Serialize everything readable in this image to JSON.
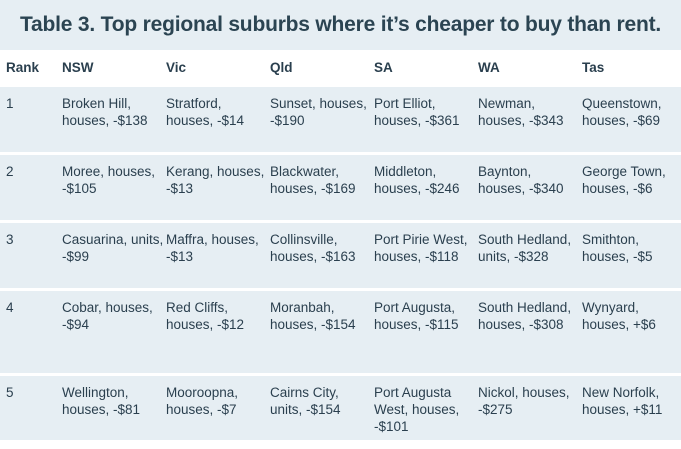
{
  "title": "Table 3. Top regional suburbs where it’s cheaper to buy than rent.",
  "table": {
    "headers": [
      "Rank",
      "NSW",
      "Vic",
      "Qld",
      "SA",
      "WA",
      "Tas"
    ],
    "rows": [
      [
        "1",
        "Broken Hill, houses, -$138",
        "Stratford, houses, -$14",
        "Sunset, houses, -$190",
        "Port Elliot, houses, -$361",
        "Newman, houses, -$343",
        "Queenstown, houses, -$69"
      ],
      [
        "2",
        "Moree, houses, -$105",
        "Kerang, houses, -$13",
        "Blackwater, houses, -$169",
        "Middleton, houses, -$246",
        "Baynton, houses, -$340",
        "George Town, houses, -$6"
      ],
      [
        "3",
        "Casuarina, units, -$99",
        "Maffra, houses, -$13",
        "Collinsville, houses, -$163",
        "Port Pirie West, houses, -$118",
        "South Hedland, units, -$328",
        "Smithton, houses, -$5"
      ],
      [
        "4",
        "Cobar, houses, -$94",
        "Red Cliffs, houses, -$12",
        "Moranbah, houses, -$154",
        "Port Augusta, houses, -$115",
        "South Hedland, houses, -$308",
        "Wynyard, houses, +$6"
      ],
      [
        "5",
        "Wellington, houses, -$81",
        "Mooroopna, houses, -$7",
        "Cairns City, units, -$154",
        "Port Augusta West, houses, -$101",
        "Nickol, houses, -$275",
        "New Norfolk, houses, +$11"
      ]
    ]
  },
  "colors": {
    "shade": "#e6eef3",
    "text": "#2a3f4e"
  }
}
